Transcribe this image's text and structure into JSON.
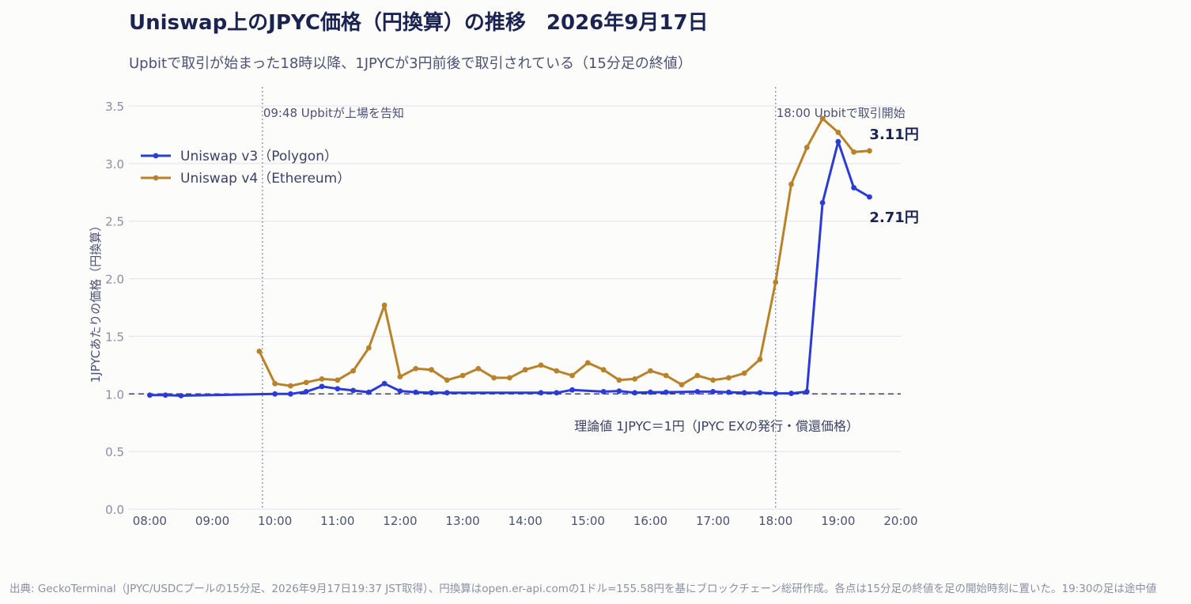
{
  "header": {
    "title": "Uniswap上のJPYC価格（円換算）の推移　2026年9月17日",
    "subtitle": "Upbitで取引が始まった18時以降、1JPYCが3円前後で取引されている（15分足の終値）"
  },
  "footer": {
    "source": "出典: GeckoTerminal（JPYC/USDCプールの15分足、2026年9月17日19:37 JST取得）、円換算はopen.er-api.comの1ドル=155.58円を基にブロックチェーン総研作成。各点は15分足の終値を足の開始時刻に置いた。19:30の足は途中値"
  },
  "chart_data": {
    "type": "line",
    "title": "Uniswap上のJPYC価格（円換算）の推移　2026年9月17日",
    "ylabel": "1JPYCあたりの価格（円換算）",
    "xlabel": "",
    "ylim": [
      0,
      3.5
    ],
    "xlim": [
      "07:40",
      "20:00"
    ],
    "x_ticks": [
      "08:00",
      "09:00",
      "10:00",
      "11:00",
      "12:00",
      "13:00",
      "14:00",
      "15:00",
      "16:00",
      "17:00",
      "18:00",
      "19:00",
      "20:00"
    ],
    "y_ticks": [
      "0.0",
      "0.5",
      "1.0",
      "1.5",
      "2.0",
      "2.5",
      "3.0",
      "3.5"
    ],
    "grid": true,
    "legend": "top-left",
    "series": [
      {
        "name": "Uniswap v3（Polygon）",
        "color": "#2b3bd9",
        "points": [
          [
            "08:00",
            0.99
          ],
          [
            "08:15",
            0.99
          ],
          [
            "08:30",
            0.985
          ],
          [
            "10:00",
            1.0
          ],
          [
            "10:15",
            1.0
          ],
          [
            "10:30",
            1.02
          ],
          [
            "10:45",
            1.065
          ],
          [
            "11:00",
            1.045
          ],
          [
            "11:15",
            1.03
          ],
          [
            "11:30",
            1.015
          ],
          [
            "11:45",
            1.09
          ],
          [
            "12:00",
            1.025
          ],
          [
            "12:15",
            1.015
          ],
          [
            "12:30",
            1.01
          ],
          [
            "12:45",
            1.01
          ],
          [
            "14:15",
            1.01
          ],
          [
            "14:30",
            1.01
          ],
          [
            "14:45",
            1.035
          ],
          [
            "15:15",
            1.02
          ],
          [
            "15:30",
            1.025
          ],
          [
            "15:45",
            1.01
          ],
          [
            "16:00",
            1.015
          ],
          [
            "16:15",
            1.015
          ],
          [
            "16:45",
            1.02
          ],
          [
            "17:00",
            1.02
          ],
          [
            "17:15",
            1.015
          ],
          [
            "17:30",
            1.01
          ],
          [
            "17:45",
            1.01
          ],
          [
            "18:00",
            1.005
          ],
          [
            "18:15",
            1.005
          ],
          [
            "18:30",
            1.02
          ],
          [
            "18:45",
            2.66
          ],
          [
            "19:00",
            3.19
          ],
          [
            "19:15",
            2.79
          ],
          [
            "19:30",
            2.71
          ]
        ]
      },
      {
        "name": "Uniswap v4（Ethereum）",
        "color": "#b8822a",
        "points": [
          [
            "09:45",
            1.37
          ],
          [
            "10:00",
            1.09
          ],
          [
            "10:15",
            1.07
          ],
          [
            "10:30",
            1.1
          ],
          [
            "10:45",
            1.13
          ],
          [
            "11:00",
            1.12
          ],
          [
            "11:15",
            1.2
          ],
          [
            "11:30",
            1.4
          ],
          [
            "11:45",
            1.77
          ],
          [
            "12:00",
            1.15
          ],
          [
            "12:15",
            1.22
          ],
          [
            "12:30",
            1.21
          ],
          [
            "12:45",
            1.12
          ],
          [
            "13:00",
            1.16
          ],
          [
            "13:15",
            1.22
          ],
          [
            "13:30",
            1.14
          ],
          [
            "13:45",
            1.14
          ],
          [
            "14:00",
            1.21
          ],
          [
            "14:15",
            1.25
          ],
          [
            "14:30",
            1.2
          ],
          [
            "14:45",
            1.16
          ],
          [
            "15:00",
            1.27
          ],
          [
            "15:15",
            1.21
          ],
          [
            "15:30",
            1.12
          ],
          [
            "15:45",
            1.13
          ],
          [
            "16:00",
            1.2
          ],
          [
            "16:15",
            1.16
          ],
          [
            "16:30",
            1.08
          ],
          [
            "16:45",
            1.16
          ],
          [
            "17:00",
            1.12
          ],
          [
            "17:15",
            1.14
          ],
          [
            "17:30",
            1.18
          ],
          [
            "17:45",
            1.3
          ],
          [
            "18:00",
            1.97
          ],
          [
            "18:15",
            2.82
          ],
          [
            "18:30",
            3.14
          ],
          [
            "18:45",
            3.39
          ],
          [
            "19:00",
            3.27
          ],
          [
            "19:15",
            3.1
          ],
          [
            "19:30",
            3.11
          ]
        ]
      }
    ],
    "end_labels": [
      {
        "series": 1,
        "text": "3.11円",
        "position": "above"
      },
      {
        "series": 0,
        "text": "2.71円",
        "position": "below"
      }
    ],
    "reference_line": {
      "y": 1.0,
      "label": "理論値 1JPYC＝1円（JPYC EXの発行・償還価格）"
    },
    "annotations": [
      {
        "x": "09:48",
        "label": "09:48 Upbitが上場を告知"
      },
      {
        "x": "18:00",
        "label": "18:00 Upbitで取引開始"
      }
    ]
  }
}
